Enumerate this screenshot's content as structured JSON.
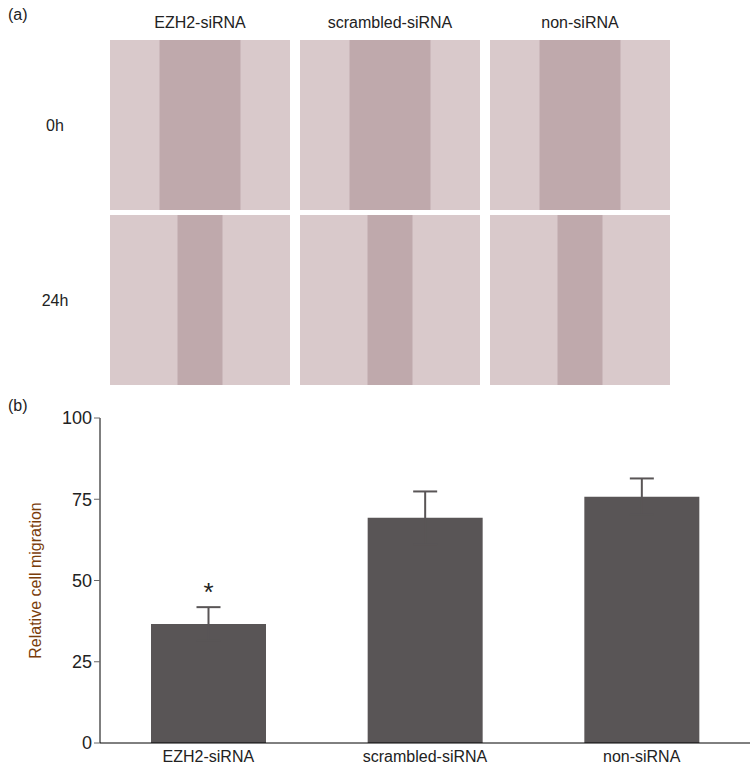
{
  "image_panel": {
    "panel_label": "(a)",
    "columns": [
      "EZH2-siRNA",
      "scrambled-siRNA",
      "non-siRNA"
    ],
    "rows": [
      "0h",
      "24h"
    ]
  },
  "chart_data": {
    "type": "bar",
    "panel_label": "(b)",
    "y_label": "Relative cell migration",
    "categories": [
      "EZH2-siRNA",
      "scrambled-siRNA",
      "non-siRNA"
    ],
    "values": [
      36.6,
      69.3,
      75.8
    ],
    "errors": [
      5.2,
      8.1,
      5.6
    ],
    "color": "#595556",
    "ylim": [
      0,
      100
    ],
    "yticks": [
      0,
      25,
      50,
      75,
      100
    ],
    "grid": false,
    "annotations": [
      {
        "category": "EZH2-siRNA",
        "text": "*"
      }
    ]
  }
}
